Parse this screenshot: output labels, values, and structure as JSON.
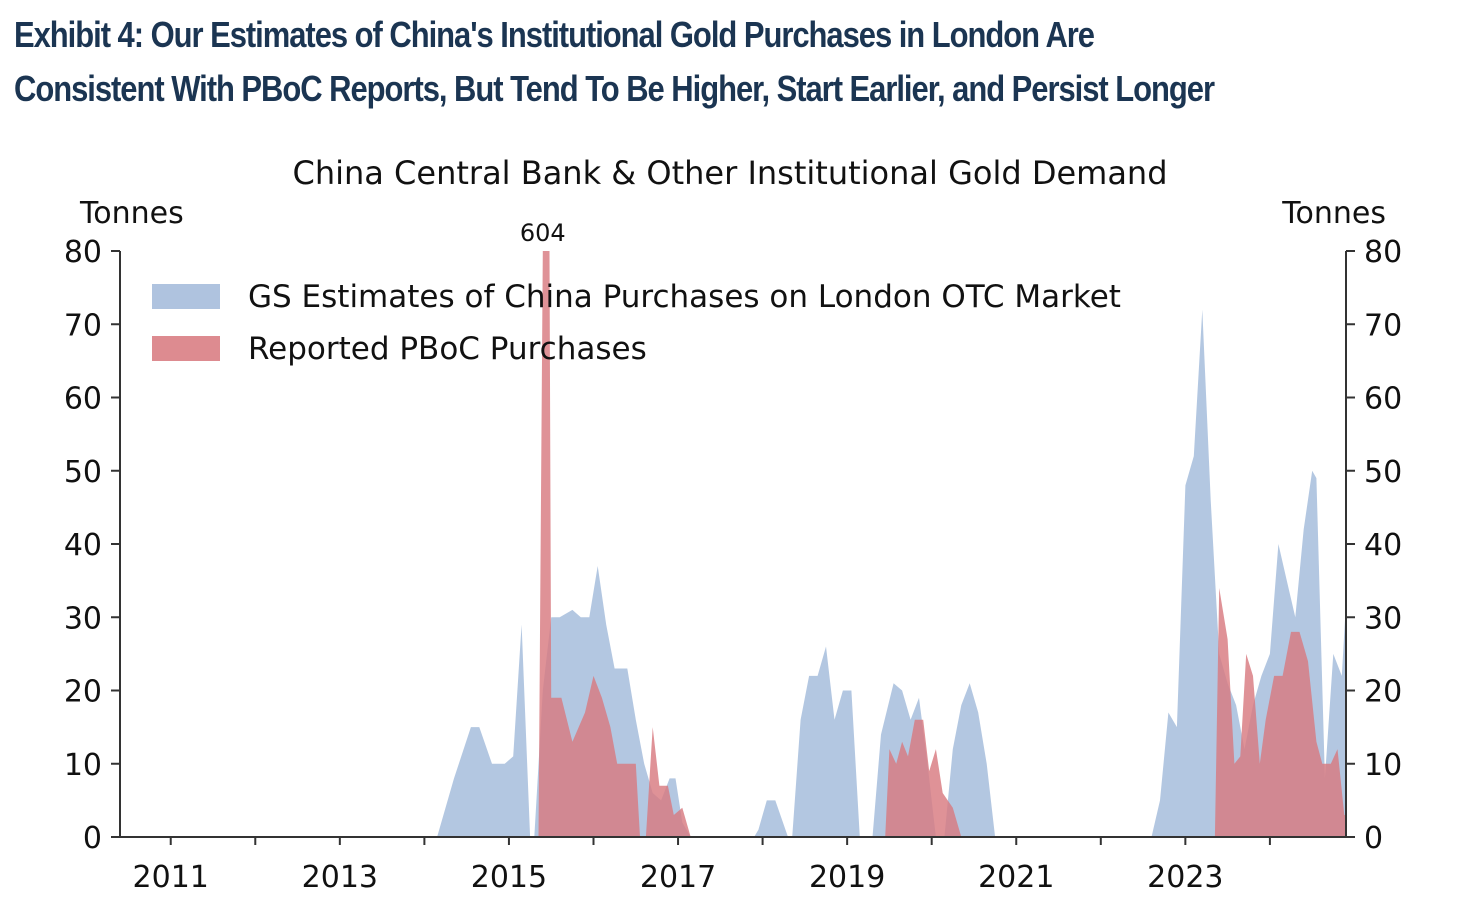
{
  "exhibit": {
    "title_line1": "Exhibit 4: Our Estimates of China's Institutional Gold Purchases in London Are",
    "title_line2": "Consistent With PBoC Reports, But Tend To Be Higher, Start Earlier, and Persist Longer"
  },
  "chart_data": {
    "type": "area",
    "title": "China Central Bank & Other Institutional Gold Demand",
    "y_left_label": "Tonnes",
    "y_right_label": "Tonnes",
    "ylim": [
      0,
      80
    ],
    "yticks": [
      0,
      10,
      20,
      30,
      40,
      50,
      60,
      70,
      80
    ],
    "xlim": [
      2010.4,
      2024.9
    ],
    "xticks": [
      2011,
      2013,
      2015,
      2017,
      2019,
      2021,
      2023
    ],
    "grid": false,
    "legend_position": "top-left",
    "colors": {
      "gs": "#a6bddc",
      "pboc": "#d87a80"
    },
    "annotations": [
      {
        "text": "604",
        "x": 2015.4,
        "y": 80
      }
    ],
    "series": [
      {
        "name": "GS Estimates of China Purchases on London OTC Market",
        "points": [
          [
            2014.15,
            0
          ],
          [
            2014.35,
            8
          ],
          [
            2014.55,
            15
          ],
          [
            2014.65,
            15
          ],
          [
            2014.8,
            10
          ],
          [
            2014.95,
            10
          ],
          [
            2015.05,
            11
          ],
          [
            2015.15,
            29
          ],
          [
            2015.25,
            0
          ],
          [
            2015.3,
            0
          ],
          [
            2015.4,
            20
          ],
          [
            2015.5,
            30
          ],
          [
            2015.6,
            30
          ],
          [
            2015.75,
            31
          ],
          [
            2015.85,
            30
          ],
          [
            2015.95,
            30
          ],
          [
            2016.05,
            37
          ],
          [
            2016.15,
            29
          ],
          [
            2016.25,
            23
          ],
          [
            2016.4,
            23
          ],
          [
            2016.5,
            16
          ],
          [
            2016.6,
            10
          ],
          [
            2016.7,
            6
          ],
          [
            2016.8,
            5
          ],
          [
            2016.9,
            8
          ],
          [
            2016.97,
            8
          ],
          [
            2017.05,
            2
          ],
          [
            2017.15,
            0
          ],
          [
            2017.9,
            0
          ],
          [
            2017.95,
            1
          ],
          [
            2018.05,
            5
          ],
          [
            2018.15,
            5
          ],
          [
            2018.3,
            0
          ],
          [
            2018.35,
            0
          ],
          [
            2018.45,
            16
          ],
          [
            2018.55,
            22
          ],
          [
            2018.65,
            22
          ],
          [
            2018.75,
            26
          ],
          [
            2018.85,
            16
          ],
          [
            2018.95,
            20
          ],
          [
            2019.05,
            20
          ],
          [
            2019.15,
            0
          ],
          [
            2019.3,
            0
          ],
          [
            2019.4,
            14
          ],
          [
            2019.55,
            21
          ],
          [
            2019.65,
            20
          ],
          [
            2019.75,
            16
          ],
          [
            2019.85,
            19
          ],
          [
            2019.95,
            10
          ],
          [
            2020.05,
            0
          ],
          [
            2020.15,
            0
          ],
          [
            2020.25,
            12
          ],
          [
            2020.35,
            18
          ],
          [
            2020.45,
            21
          ],
          [
            2020.55,
            17
          ],
          [
            2020.65,
            10
          ],
          [
            2020.75,
            0
          ],
          [
            2022.6,
            0
          ],
          [
            2022.7,
            5
          ],
          [
            2022.8,
            17
          ],
          [
            2022.9,
            15
          ],
          [
            2023.0,
            48
          ],
          [
            2023.1,
            52
          ],
          [
            2023.2,
            72
          ],
          [
            2023.3,
            46
          ],
          [
            2023.4,
            25
          ],
          [
            2023.5,
            21
          ],
          [
            2023.6,
            18
          ],
          [
            2023.7,
            12
          ],
          [
            2023.8,
            18
          ],
          [
            2023.9,
            22
          ],
          [
            2024.0,
            25
          ],
          [
            2024.1,
            40
          ],
          [
            2024.2,
            35
          ],
          [
            2024.3,
            30
          ],
          [
            2024.4,
            42
          ],
          [
            2024.5,
            50
          ],
          [
            2024.55,
            49
          ],
          [
            2024.65,
            8
          ],
          [
            2024.75,
            25
          ],
          [
            2024.85,
            22
          ],
          [
            2024.95,
            42
          ],
          [
            2025.05,
            35
          ],
          [
            2025.15,
            50
          ],
          [
            2025.25,
            0
          ]
        ]
      },
      {
        "name": "Reported PBoC Purchases",
        "points": [
          [
            2015.35,
            0
          ],
          [
            2015.4,
            80
          ],
          [
            2015.48,
            80
          ],
          [
            2015.5,
            19
          ],
          [
            2015.62,
            19
          ],
          [
            2015.75,
            13
          ],
          [
            2015.9,
            17
          ],
          [
            2016.0,
            22
          ],
          [
            2016.1,
            19
          ],
          [
            2016.2,
            15
          ],
          [
            2016.28,
            10
          ],
          [
            2016.4,
            10
          ],
          [
            2016.5,
            10
          ],
          [
            2016.55,
            0
          ],
          [
            2016.62,
            0
          ],
          [
            2016.7,
            15
          ],
          [
            2016.78,
            7
          ],
          [
            2016.88,
            7
          ],
          [
            2016.95,
            3
          ],
          [
            2017.05,
            4
          ],
          [
            2017.15,
            0
          ],
          [
            2019.45,
            0
          ],
          [
            2019.5,
            12
          ],
          [
            2019.58,
            10
          ],
          [
            2019.65,
            13
          ],
          [
            2019.72,
            11
          ],
          [
            2019.8,
            16
          ],
          [
            2019.9,
            16
          ],
          [
            2019.97,
            9
          ],
          [
            2020.05,
            12
          ],
          [
            2020.13,
            6
          ],
          [
            2020.25,
            4
          ],
          [
            2020.35,
            0
          ],
          [
            2023.35,
            0
          ],
          [
            2023.4,
            34
          ],
          [
            2023.5,
            27
          ],
          [
            2023.58,
            10
          ],
          [
            2023.65,
            11
          ],
          [
            2023.72,
            25
          ],
          [
            2023.8,
            22
          ],
          [
            2023.88,
            10
          ],
          [
            2023.95,
            16
          ],
          [
            2024.05,
            22
          ],
          [
            2024.15,
            22
          ],
          [
            2024.25,
            28
          ],
          [
            2024.35,
            28
          ],
          [
            2024.45,
            24
          ],
          [
            2024.55,
            13
          ],
          [
            2024.62,
            10
          ],
          [
            2024.72,
            10
          ],
          [
            2024.8,
            12
          ],
          [
            2024.88,
            3
          ],
          [
            2024.95,
            3
          ],
          [
            2025.05,
            0
          ]
        ]
      }
    ]
  }
}
